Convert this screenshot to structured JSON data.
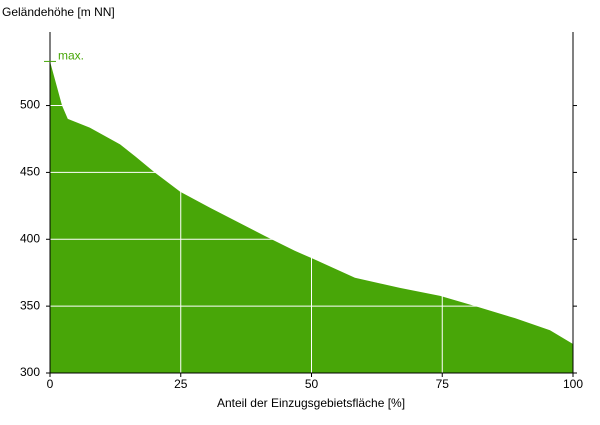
{
  "chart_data": {
    "type": "area",
    "color": "#48a608",
    "ylabel": "Geländehöhe [m NN]",
    "xlabel": "Anteil der Einzugsgebietsfläche [%]",
    "x": [
      0,
      2.3,
      3.4,
      7.6,
      13.4,
      16.3,
      20,
      24.9,
      30.6,
      41,
      46.8,
      50.3,
      58.3,
      66.9,
      74.6,
      81.3,
      88.9,
      95.6,
      100
    ],
    "values": [
      533,
      500,
      490,
      483.5,
      471,
      462,
      450,
      435.5,
      423.6,
      402.6,
      391.4,
      385.4,
      371.2,
      363.7,
      357.7,
      350,
      341,
      332,
      321.7
    ],
    "annotation": {
      "text": "max.",
      "value": 533
    },
    "xlim": [
      0,
      100
    ],
    "ylim": [
      300,
      555
    ],
    "xticks": [
      0,
      25,
      50,
      75,
      100
    ],
    "yticks": [
      300,
      350,
      400,
      450,
      500
    ],
    "grid": true
  }
}
